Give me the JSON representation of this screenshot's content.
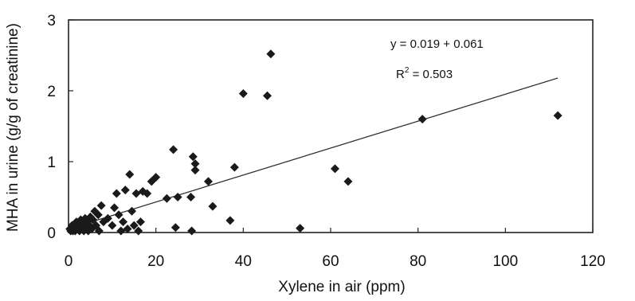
{
  "chart_data": {
    "type": "scatter",
    "xlabel": "Xylene in air (ppm)",
    "ylabel": "MHA in urine (g/g of creatinine)",
    "xlim": [
      0,
      120
    ],
    "ylim": [
      0,
      3
    ],
    "xticks": [
      "0",
      "20",
      "40",
      "60",
      "80",
      "100",
      "120"
    ],
    "yticks": [
      "0",
      "1",
      "2",
      "3"
    ],
    "grid": false,
    "annotations": {
      "equation": "y = 0.019 + 0.061",
      "r2_prefix": "R",
      "r2_sup": "2",
      "r2_value": " = 0.503"
    },
    "trendline": {
      "x": [
        0,
        112
      ],
      "y": [
        0.05,
        2.18
      ]
    },
    "points": [
      [
        0.3,
        0.05
      ],
      [
        0.5,
        0.0
      ],
      [
        0.8,
        0.1
      ],
      [
        1.0,
        -0.05
      ],
      [
        1.2,
        0.05
      ],
      [
        1.5,
        0.0
      ],
      [
        1.8,
        0.15
      ],
      [
        2.0,
        0.05
      ],
      [
        2.2,
        0.1
      ],
      [
        2.5,
        0.0
      ],
      [
        2.8,
        0.18
      ],
      [
        3.0,
        0.05
      ],
      [
        3.2,
        0.12
      ],
      [
        3.5,
        0.0
      ],
      [
        3.8,
        0.2
      ],
      [
        4.0,
        0.08
      ],
      [
        4.2,
        0.15
      ],
      [
        4.5,
        0.0
      ],
      [
        4.8,
        0.1
      ],
      [
        5.0,
        0.22
      ],
      [
        5.3,
        0.05
      ],
      [
        5.6,
        0.18
      ],
      [
        6.0,
        0.3
      ],
      [
        6.3,
        0.1
      ],
      [
        6.8,
        0.25
      ],
      [
        7.0,
        0.0
      ],
      [
        7.5,
        0.38
      ],
      [
        8.0,
        0.15
      ],
      [
        9.0,
        0.2
      ],
      [
        10.0,
        0.1
      ],
      [
        10.5,
        0.35
      ],
      [
        11.0,
        0.55
      ],
      [
        11.5,
        0.25
      ],
      [
        12.0,
        0.0
      ],
      [
        12.5,
        0.15
      ],
      [
        13.0,
        0.6
      ],
      [
        13.5,
        0.05
      ],
      [
        14.0,
        0.82
      ],
      [
        14.5,
        0.3
      ],
      [
        15.0,
        0.1
      ],
      [
        15.5,
        0.55
      ],
      [
        16.0,
        0.0
      ],
      [
        16.5,
        0.15
      ],
      [
        17.0,
        0.58
      ],
      [
        18.0,
        0.55
      ],
      [
        19.0,
        0.72
      ],
      [
        20.0,
        0.78
      ],
      [
        22.5,
        0.48
      ],
      [
        24.0,
        1.17
      ],
      [
        24.5,
        0.07
      ],
      [
        25.0,
        0.5
      ],
      [
        28.0,
        0.5
      ],
      [
        28.2,
        -0.02
      ],
      [
        28.5,
        1.07
      ],
      [
        29.0,
        0.97
      ],
      [
        29.0,
        0.88
      ],
      [
        32.0,
        0.72
      ],
      [
        33.0,
        0.37
      ],
      [
        37.0,
        0.17
      ],
      [
        38.0,
        0.92
      ],
      [
        40.0,
        1.96
      ],
      [
        45.5,
        1.93
      ],
      [
        46.3,
        2.52
      ],
      [
        53.0,
        0.06
      ],
      [
        61.0,
        0.9
      ],
      [
        64.0,
        0.72
      ],
      [
        81.0,
        1.6
      ],
      [
        112.0,
        1.65
      ]
    ]
  }
}
